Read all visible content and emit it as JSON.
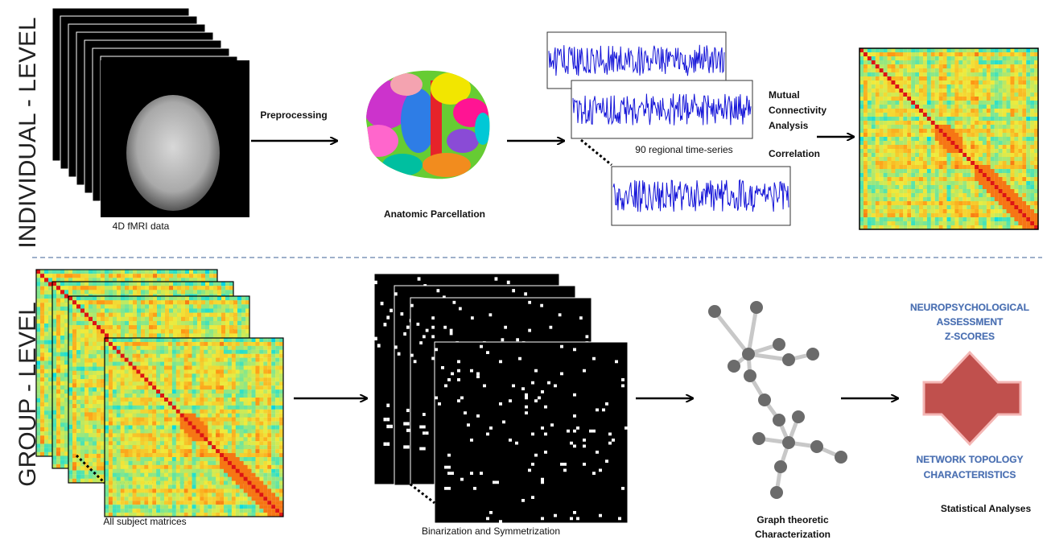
{
  "rows": {
    "individual": "INDIVIDUAL - LEVEL",
    "group": "GROUP - LEVEL"
  },
  "individual": {
    "fmri": "4D fMRI data",
    "preprocessing": "Preprocessing",
    "parcellation": "Anatomic Parcellation",
    "timeseries": "90 regional time-series",
    "connectivity": [
      "Mutual",
      "Connectivity",
      "Analysis"
    ],
    "correlation": "Correlation"
  },
  "group": {
    "matrices": "All subject matrices",
    "binarization": "Binarization and Symmetrization",
    "graph": [
      "Graph theoretic",
      "Characterization"
    ],
    "neuro": [
      "NEUROPSYCHOLOGICAL",
      "ASSESSMENT",
      "Z-SCORES"
    ],
    "topology": [
      "NETWORK TOPOLOGY",
      "CHARACTERISTICS"
    ],
    "statistics": "Statistical Analyses"
  }
}
